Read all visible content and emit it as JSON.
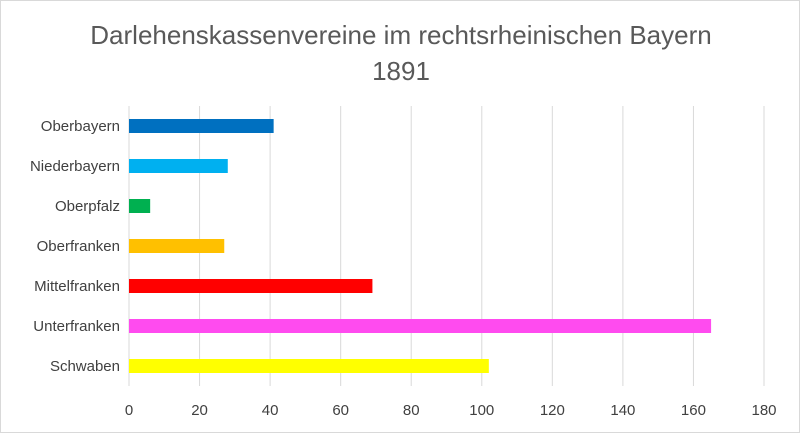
{
  "chart_data": {
    "type": "bar",
    "orientation": "horizontal",
    "title": [
      "Darlehenskassenvereine im rechtsrheinischen Bayern",
      "1891"
    ],
    "categories": [
      "Oberbayern",
      "Niederbayern",
      "Oberpfalz",
      "Oberfranken",
      "Mittelfranken",
      "Unterfranken",
      "Schwaben"
    ],
    "values": [
      41,
      28,
      6,
      27,
      69,
      165,
      102
    ],
    "colors": [
      "#0070c0",
      "#00b0f0",
      "#00b050",
      "#ffc000",
      "#ff0000",
      "#ff4bef",
      "#ffff00"
    ],
    "xlim": [
      0,
      180
    ],
    "xticks": [
      0,
      20,
      40,
      60,
      80,
      100,
      120,
      140,
      160,
      180
    ],
    "grid": true,
    "legend": "none"
  }
}
